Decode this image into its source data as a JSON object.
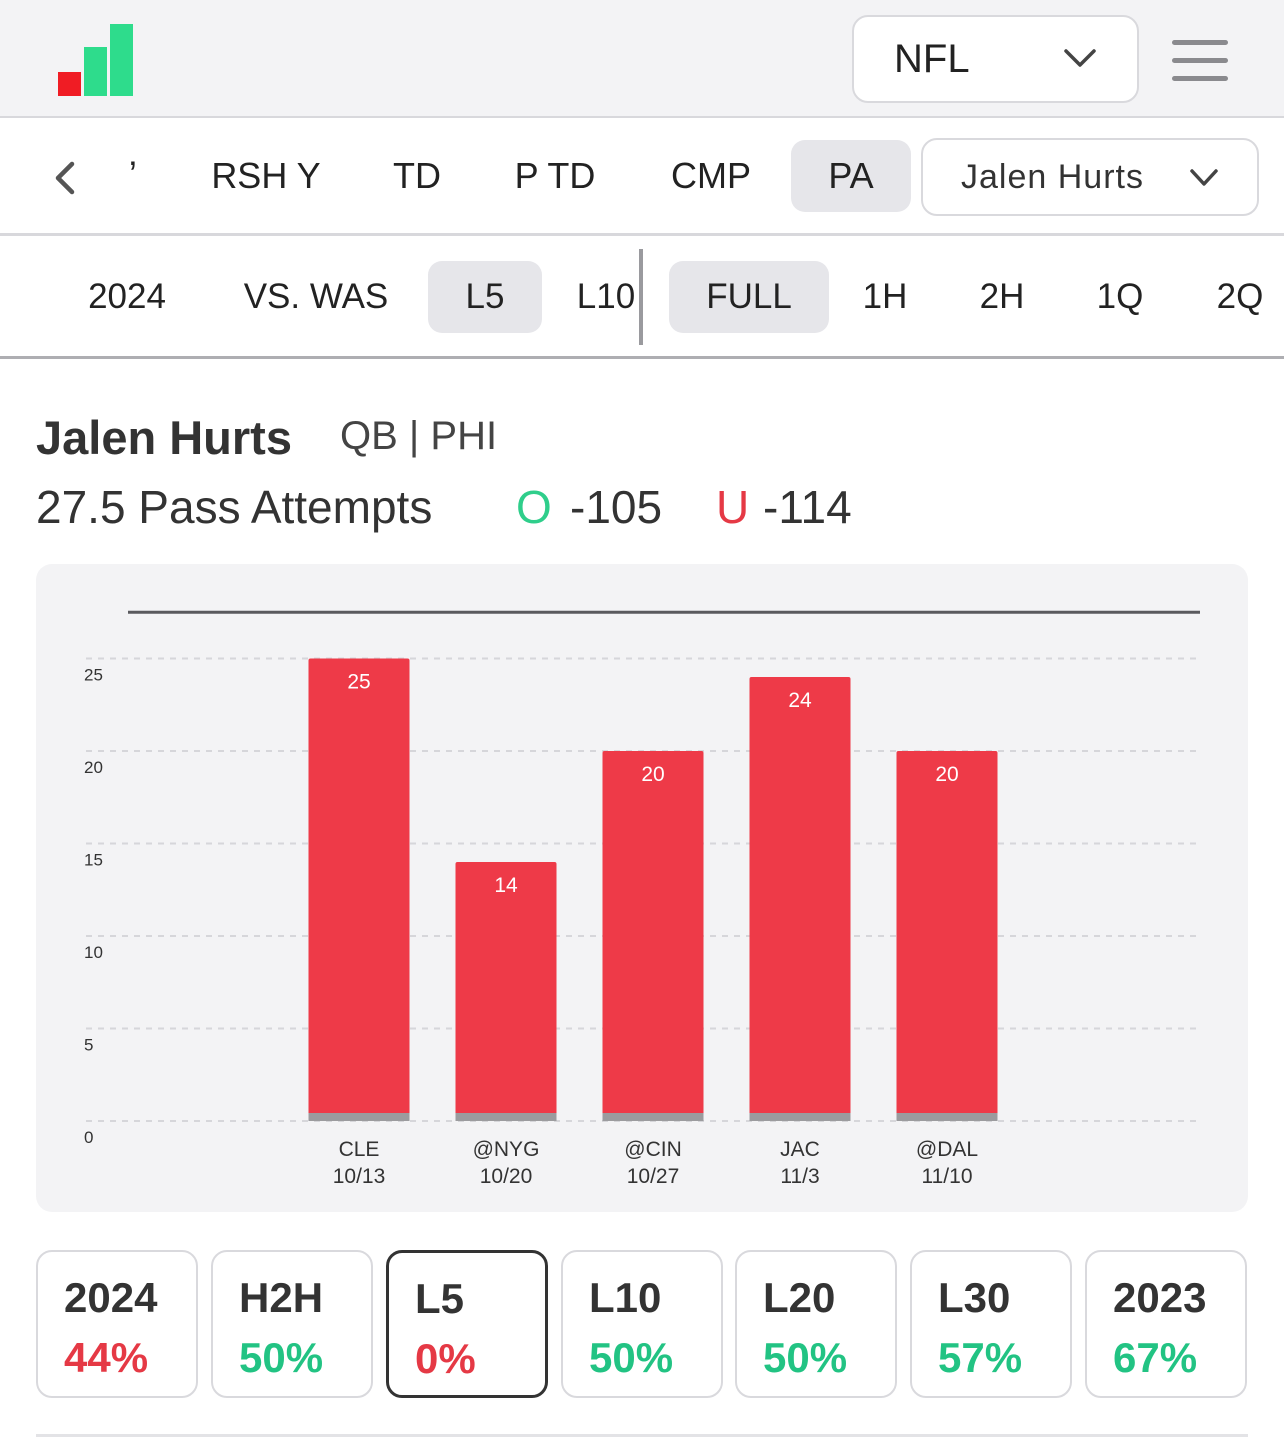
{
  "header": {
    "logo_icon": "bar-chart-logo-icon",
    "league_select": {
      "value": "NFL"
    },
    "menu_icon": "hamburger-menu-icon"
  },
  "stat_tabs": {
    "partial_label": "ʼ",
    "items": [
      {
        "label": "RSH Y",
        "active": false
      },
      {
        "label": "TD",
        "active": false
      },
      {
        "label": "P TD",
        "active": false
      },
      {
        "label": "CMP",
        "active": false
      },
      {
        "label": "PA",
        "active": true
      }
    ],
    "player_select": {
      "value": "Jalen Hurts"
    }
  },
  "range_tabs": [
    {
      "label": "2024",
      "active": false
    },
    {
      "label": "VS. WAS",
      "active": false
    },
    {
      "label": "L5",
      "active": true
    },
    {
      "label": "L10",
      "active": false
    }
  ],
  "period_tabs": [
    {
      "label": "FULL",
      "active": true
    },
    {
      "label": "1H",
      "active": false
    },
    {
      "label": "2H",
      "active": false
    },
    {
      "label": "1Q",
      "active": false
    },
    {
      "label": "2Q",
      "active": false
    }
  ],
  "player": {
    "name": "Jalen Hurts",
    "meta": "QB | PHI",
    "line": "27.5 Pass Attempts",
    "over_letter": "O",
    "over_odds": "-105",
    "under_letter": "U",
    "under_odds": "-114"
  },
  "chart_data": {
    "type": "bar",
    "categories": [
      "CLE",
      "@NYG",
      "@CIN",
      "JAC",
      "@DAL"
    ],
    "dates": [
      "10/13",
      "10/20",
      "10/27",
      "11/3",
      "11/10"
    ],
    "values": [
      25,
      14,
      20,
      24,
      20
    ],
    "line_value": 27.5,
    "yticks": [
      0,
      5,
      10,
      15,
      20,
      25
    ],
    "ylim": [
      0,
      27.5
    ],
    "grid": true,
    "bar_color": "#ee3a48",
    "line_color": "#5a5a5e"
  },
  "hit_rates": [
    {
      "label": "2024",
      "pct": "44%",
      "status": "red",
      "active": false
    },
    {
      "label": "H2H",
      "pct": "50%",
      "status": "green",
      "active": false
    },
    {
      "label": "L5",
      "pct": "0%",
      "status": "red",
      "active": true
    },
    {
      "label": "L10",
      "pct": "50%",
      "status": "green",
      "active": false
    },
    {
      "label": "L20",
      "pct": "50%",
      "status": "green",
      "active": false
    },
    {
      "label": "L30",
      "pct": "57%",
      "status": "green",
      "active": false
    },
    {
      "label": "2023",
      "pct": "67%",
      "status": "green",
      "active": false
    }
  ],
  "colors": {
    "green": "#22c383",
    "red": "#e53945",
    "logo_red": "#f01c24",
    "logo_green": "#2edc8c"
  }
}
